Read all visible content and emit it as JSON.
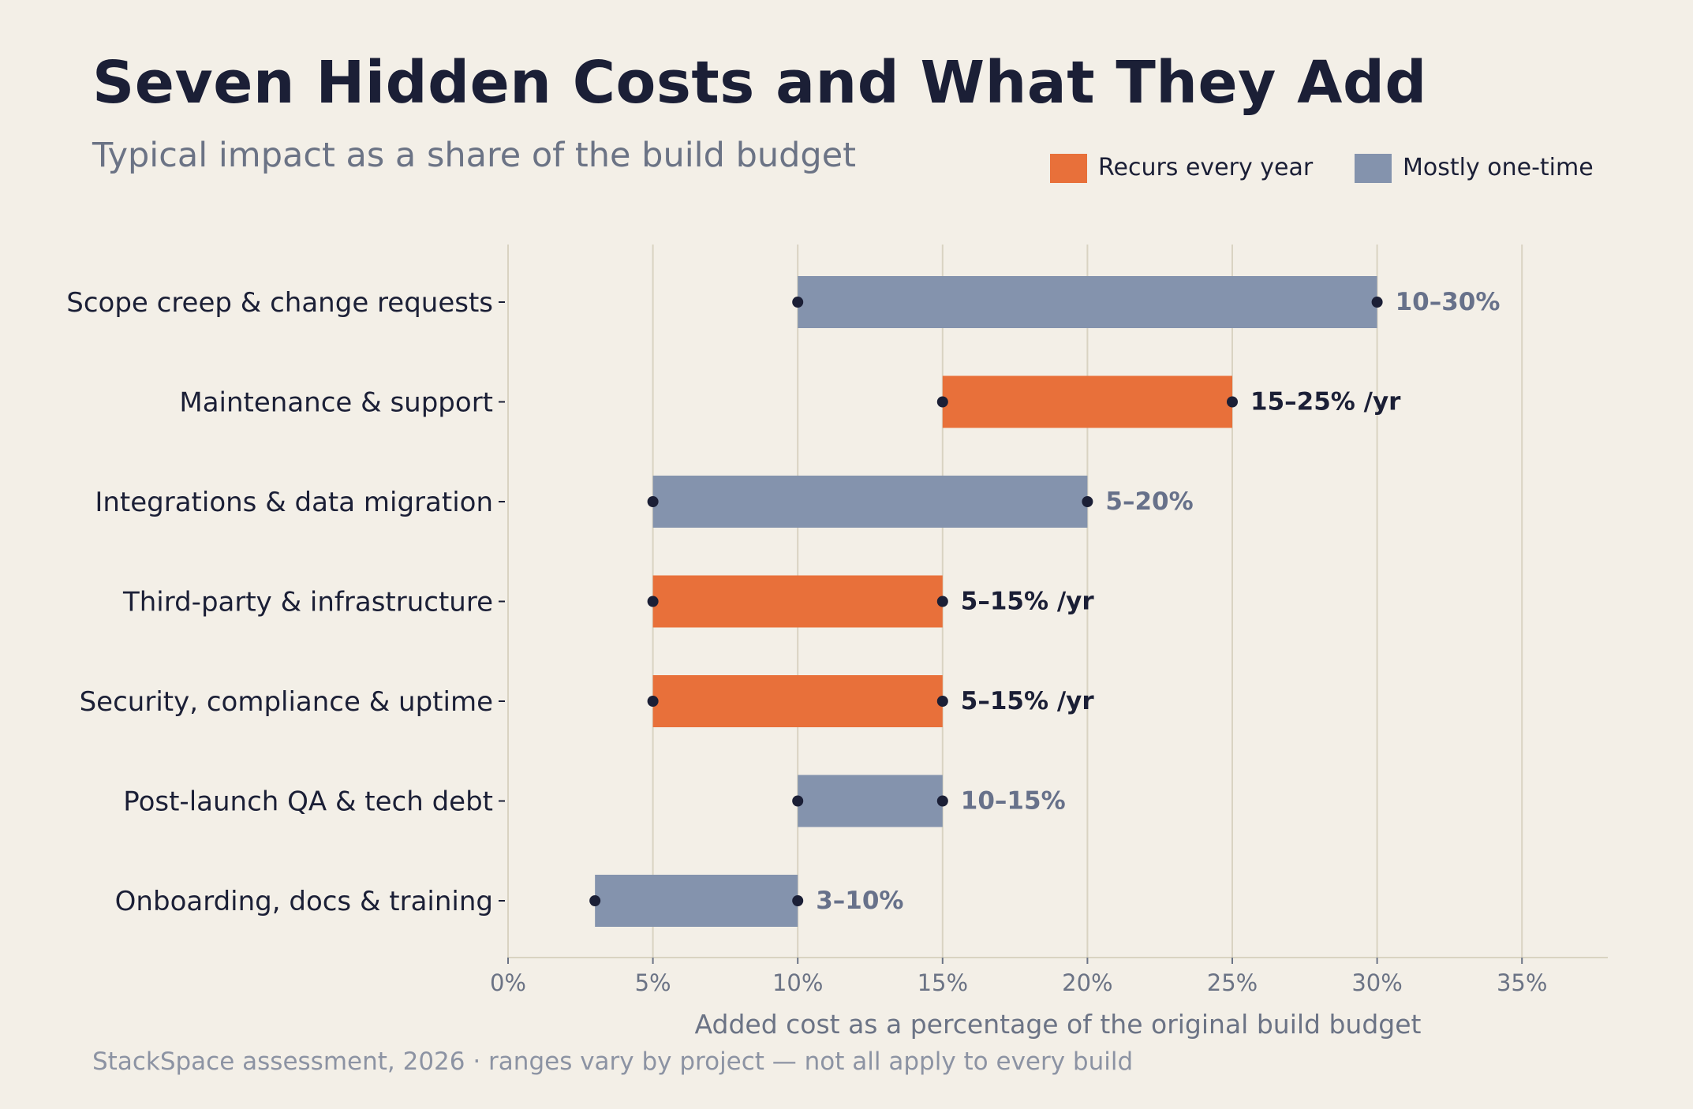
{
  "title": "Seven Hidden Costs and What They Add",
  "subtitle": "Typical impact as a share of the build budget",
  "source": "StackSpace assessment, 2026  ·  ranges vary by project — not all apply to every build",
  "colors": {
    "background": "#f3efe7",
    "recurring": "#e8703a",
    "one_time": "#8493ad",
    "dot": "#1b1f36",
    "grid": "#d9d3c2",
    "recurring_label": "#1b1f36",
    "one_time_label": "#67718a"
  },
  "chart_data": {
    "type": "bar",
    "orientation": "horizontal-range",
    "xlabel": "Added cost as a percentage of the original build budget",
    "ylabel": "",
    "xlim": [
      0,
      38
    ],
    "x_ticks": [
      0,
      5,
      10,
      15,
      20,
      25,
      30,
      35
    ],
    "x_tick_labels": [
      "0%",
      "5%",
      "10%",
      "15%",
      "20%",
      "25%",
      "30%",
      "35%"
    ],
    "grid": "vertical",
    "legend_position": "top-right",
    "legend": [
      {
        "key": "recurring",
        "label": "Recurs every year"
      },
      {
        "key": "one_time",
        "label": "Mostly one-time"
      }
    ],
    "categories": [
      "Scope creep & change requests",
      "Maintenance & support",
      "Integrations & data migration",
      "Third-party & infrastructure",
      "Security, compliance & uptime",
      "Post-launch QA & tech debt",
      "Onboarding, docs & training"
    ],
    "ranges": [
      {
        "low": 10,
        "high": 30,
        "kind": "one_time",
        "label": "10–30%"
      },
      {
        "low": 15,
        "high": 25,
        "kind": "recurring",
        "label": "15–25% /yr"
      },
      {
        "low": 5,
        "high": 20,
        "kind": "one_time",
        "label": "5–20%"
      },
      {
        "low": 5,
        "high": 15,
        "kind": "recurring",
        "label": "5–15% /yr"
      },
      {
        "low": 5,
        "high": 15,
        "kind": "recurring",
        "label": "5–15% /yr"
      },
      {
        "low": 10,
        "high": 15,
        "kind": "one_time",
        "label": "10–15%"
      },
      {
        "low": 3,
        "high": 10,
        "kind": "one_time",
        "label": "3–10%"
      }
    ]
  }
}
